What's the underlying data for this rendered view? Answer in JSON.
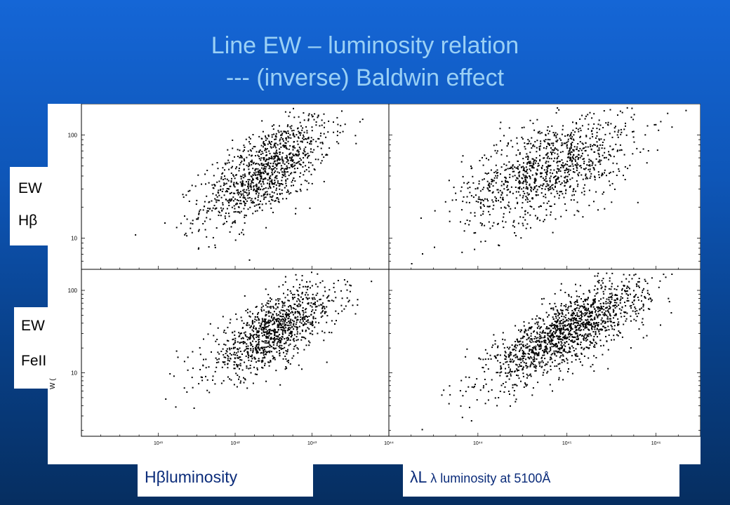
{
  "title": {
    "line1": "Line EW – luminosity relation",
    "line2": "--- (inverse) Baldwin effect"
  },
  "labels": {
    "ew_hbeta": [
      "EW",
      "Hβ"
    ],
    "ew_feii": [
      "EW",
      "FeII"
    ],
    "x_left": "Hβluminosity",
    "x_right_main": "λL",
    "x_right_sub": " λ luminosity at 5100Å",
    "w_fragment": "W (",
    "w_fragment_top": "d"
  },
  "colors": {
    "background_top": "#1566d6",
    "background_bottom": "#062e60",
    "title": "#9ad0f5",
    "xlabel": "#0b2c7a",
    "points": "#000000"
  },
  "chart_data": [
    {
      "type": "scatter",
      "panel": "top-left",
      "yscale": "log",
      "xscale": "log",
      "ylim": [
        5,
        200
      ],
      "xlim": [
        40,
        44
      ],
      "yticks": [
        {
          "value": 10,
          "label": "10"
        },
        {
          "value": 100,
          "label": "100"
        }
      ],
      "trend": {
        "x_center": 42.4,
        "y_center_log10": 1.65,
        "slope": 0.42,
        "scatter_log10": 0.2,
        "n": 1100,
        "x_spread": 0.42
      }
    },
    {
      "type": "scatter",
      "panel": "top-right",
      "yscale": "log",
      "xscale": "log",
      "ylim": [
        5,
        200
      ],
      "xlim": [
        43,
        46.5
      ],
      "yticks": [
        {
          "value": 10,
          "label": "10"
        },
        {
          "value": 100,
          "label": "100"
        }
      ],
      "trend": {
        "x_center": 44.8,
        "y_center_log10": 1.68,
        "slope": 0.3,
        "scatter_log10": 0.22,
        "n": 1100,
        "x_spread": 0.48
      }
    },
    {
      "type": "scatter",
      "panel": "bottom-left",
      "yscale": "log",
      "xscale": "log",
      "ylim": [
        1.7,
        180
      ],
      "xlim": [
        40,
        44
      ],
      "yticks": [
        {
          "value": 10,
          "label": "10"
        },
        {
          "value": 100,
          "label": "100"
        }
      ],
      "xticks": [
        {
          "value": 41,
          "label": "10⁴¹"
        },
        {
          "value": 42,
          "label": "10⁴²"
        },
        {
          "value": 43,
          "label": "10⁴³"
        },
        {
          "value": 44,
          "label": "10⁴⁴"
        }
      ],
      "trend": {
        "x_center": 42.5,
        "y_center_log10": 1.5,
        "slope": 0.45,
        "scatter_log10": 0.2,
        "n": 1100,
        "x_spread": 0.42
      }
    },
    {
      "type": "scatter",
      "panel": "bottom-right",
      "yscale": "log",
      "xscale": "log",
      "ylim": [
        1.7,
        180
      ],
      "xlim": [
        43,
        46.5
      ],
      "yticks": [
        {
          "value": 10,
          "label": "10"
        },
        {
          "value": 100,
          "label": "100"
        }
      ],
      "xticks": [
        {
          "value": 44,
          "label": "10⁴⁴"
        },
        {
          "value": 45,
          "label": "10⁴⁵"
        },
        {
          "value": 46,
          "label": "10⁴⁶"
        }
      ],
      "trend": {
        "x_center": 45.0,
        "y_center_log10": 1.5,
        "slope": 0.55,
        "scatter_log10": 0.2,
        "n": 1500,
        "x_spread": 0.45
      }
    }
  ]
}
